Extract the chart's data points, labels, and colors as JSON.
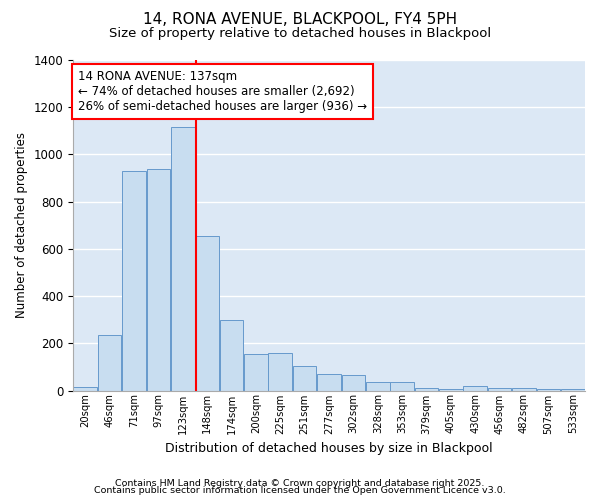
{
  "title": "14, RONA AVENUE, BLACKPOOL, FY4 5PH",
  "subtitle": "Size of property relative to detached houses in Blackpool",
  "xlabel": "Distribution of detached houses by size in Blackpool",
  "ylabel": "Number of detached properties",
  "bar_color": "#c8ddf0",
  "bar_edge_color": "#6699cc",
  "plot_bg_color": "#dce8f5",
  "fig_bg_color": "#ffffff",
  "grid_color": "#ffffff",
  "annotation_text": "14 RONA AVENUE: 137sqm\n← 74% of detached houses are smaller (2,692)\n26% of semi-detached houses are larger (936) →",
  "red_line_index": 4.44,
  "categories": [
    "20sqm",
    "46sqm",
    "71sqm",
    "97sqm",
    "123sqm",
    "148sqm",
    "174sqm",
    "200sqm",
    "225sqm",
    "251sqm",
    "277sqm",
    "302sqm",
    "328sqm",
    "353sqm",
    "379sqm",
    "405sqm",
    "430sqm",
    "456sqm",
    "482sqm",
    "507sqm",
    "533sqm"
  ],
  "values": [
    15,
    235,
    930,
    940,
    1115,
    655,
    300,
    155,
    160,
    105,
    70,
    65,
    35,
    35,
    10,
    5,
    20,
    10,
    10,
    5,
    5
  ],
  "ylim": [
    0,
    1400
  ],
  "yticks": [
    0,
    200,
    400,
    600,
    800,
    1000,
    1200,
    1400
  ],
  "footer1": "Contains HM Land Registry data © Crown copyright and database right 2025.",
  "footer2": "Contains public sector information licensed under the Open Government Licence v3.0."
}
